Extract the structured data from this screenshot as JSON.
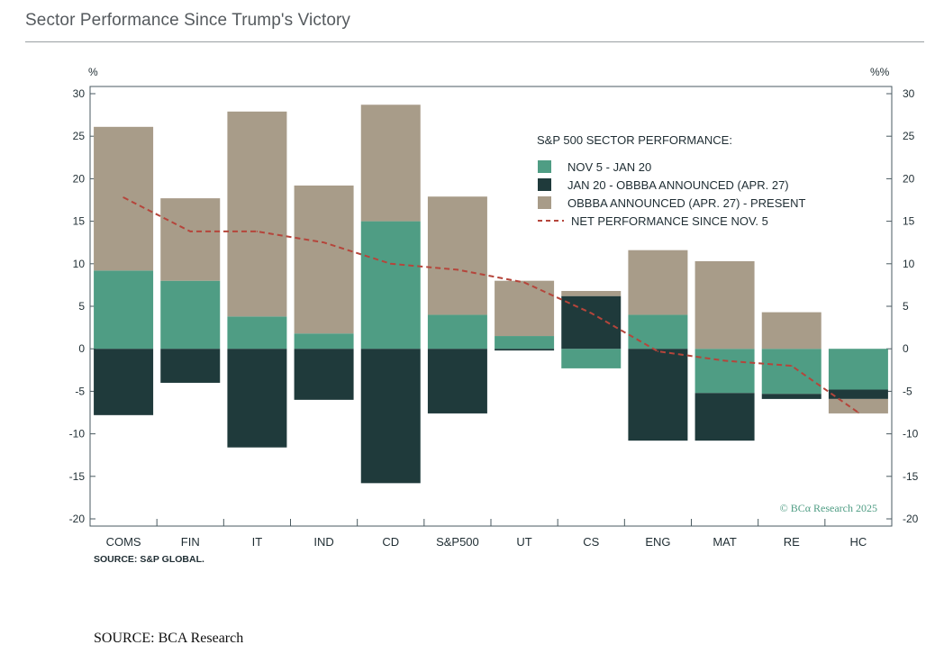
{
  "page": {
    "title": "Sector Performance Since Trump's Victory",
    "footer_source": "SOURCE: BCA Research"
  },
  "chart_data": {
    "type": "bar",
    "stacked": true,
    "left_unit": "%",
    "right_unit": "%%",
    "ylim": [
      -20,
      30
    ],
    "yticks": [
      30,
      25,
      20,
      15,
      10,
      5,
      0,
      -5,
      -10,
      -15,
      -20
    ],
    "grid": false,
    "legend_title": "S&P 500 SECTOR PERFORMANCE:",
    "legend_position": "top-right",
    "categories": [
      "COMS",
      "FIN",
      "IT",
      "IND",
      "CD",
      "S&P500",
      "UT",
      "CS",
      "ENG",
      "MAT",
      "RE",
      "HC"
    ],
    "series": [
      {
        "name": "NOV 5 - JAN 20",
        "color": "#4f9d84",
        "values": [
          9.2,
          8.0,
          3.8,
          1.8,
          15.0,
          4.0,
          1.5,
          -2.3,
          4.0,
          -5.2,
          -5.3,
          -4.8
        ]
      },
      {
        "name": "JAN 20 - OBBBA ANNOUNCED (APR. 27)",
        "color": "#1f3a3b",
        "values": [
          -7.8,
          -4.0,
          -11.6,
          -6.0,
          -15.8,
          -7.6,
          -0.2,
          6.2,
          -10.8,
          -5.6,
          -0.6,
          -1.1
        ]
      },
      {
        "name": "OBBBA ANNOUNCED (APR. 27) - PRESENT",
        "color": "#a89c89",
        "values": [
          16.9,
          9.7,
          24.1,
          17.4,
          13.7,
          13.9,
          6.5,
          0.6,
          7.6,
          10.3,
          4.3,
          -1.7
        ]
      }
    ],
    "line": {
      "name": "NET PERFORMANCE SINCE NOV. 5",
      "color": "#b5453b",
      "values": [
        17.8,
        13.8,
        13.8,
        12.5,
        10.0,
        9.3,
        7.8,
        4.2,
        -0.3,
        -1.4,
        -2.0,
        -7.5
      ]
    },
    "watermark": "© BCα Research 2025",
    "source_note": "SOURCE: S&P GLOBAL."
  }
}
